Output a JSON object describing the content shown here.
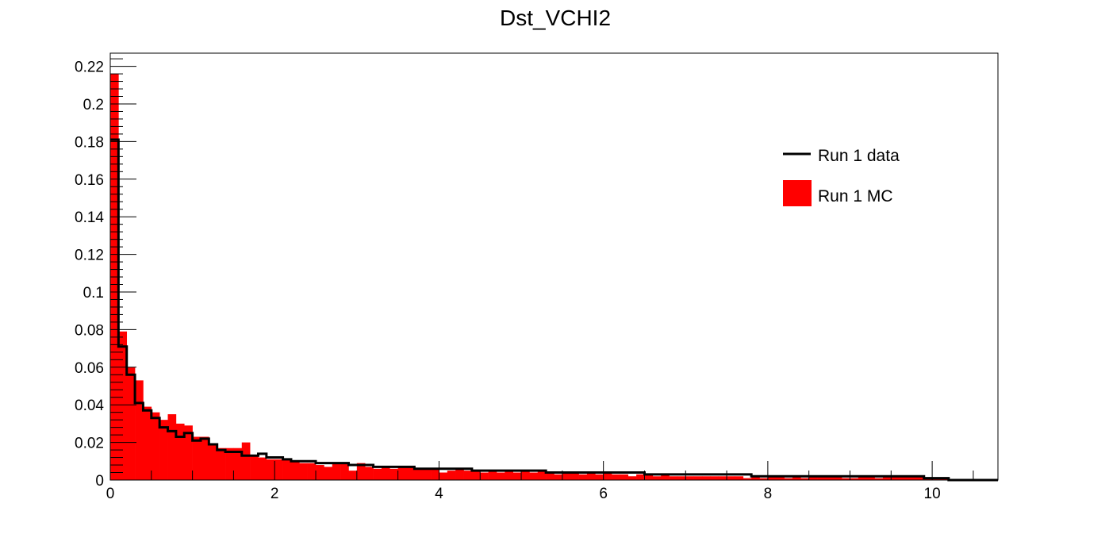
{
  "chart_data": {
    "type": "histogram",
    "title": "Dst_VCHI2",
    "xlabel": "",
    "ylabel": "",
    "xlim": [
      0,
      10.8
    ],
    "ylim": [
      0,
      0.227
    ],
    "bin_width": 0.1,
    "x_ticks": [
      0,
      2,
      4,
      6,
      8,
      10
    ],
    "x_tick_labels": [
      "0",
      "2",
      "4",
      "6",
      "8",
      "10"
    ],
    "y_ticks": [
      0,
      0.02,
      0.04,
      0.06,
      0.08,
      0.1,
      0.12,
      0.14,
      0.16,
      0.18,
      0.2,
      0.22
    ],
    "y_tick_labels": [
      "0",
      "0.02",
      "0.04",
      "0.06",
      "0.08",
      "0.1",
      "0.12",
      "0.14",
      "0.16",
      "0.18",
      "0.2",
      "0.22"
    ],
    "grid": false,
    "legend_position": "top-right",
    "series": [
      {
        "name": "Run 1 data",
        "style": "step-line",
        "color": "#000000",
        "values": [
          0.181,
          0.071,
          0.056,
          0.041,
          0.037,
          0.033,
          0.028,
          0.026,
          0.023,
          0.025,
          0.021,
          0.022,
          0.019,
          0.016,
          0.015,
          0.015,
          0.013,
          0.013,
          0.014,
          0.012,
          0.012,
          0.011,
          0.01,
          0.01,
          0.01,
          0.009,
          0.009,
          0.009,
          0.009,
          0.008,
          0.008,
          0.008,
          0.007,
          0.007,
          0.007,
          0.007,
          0.007,
          0.006,
          0.006,
          0.006,
          0.006,
          0.006,
          0.006,
          0.006,
          0.005,
          0.005,
          0.005,
          0.005,
          0.005,
          0.005,
          0.005,
          0.005,
          0.005,
          0.004,
          0.004,
          0.004,
          0.004,
          0.004,
          0.004,
          0.004,
          0.004,
          0.004,
          0.004,
          0.004,
          0.004,
          0.003,
          0.003,
          0.003,
          0.003,
          0.003,
          0.003,
          0.003,
          0.003,
          0.003,
          0.003,
          0.003,
          0.003,
          0.003,
          0.002,
          0.002,
          0.002,
          0.002,
          0.002,
          0.002,
          0.002,
          0.002,
          0.002,
          0.002,
          0.002,
          0.002,
          0.002,
          0.002,
          0.002,
          0.002,
          0.002,
          0.002,
          0.002,
          0.002,
          0.002,
          0.001,
          0.001,
          0.001,
          0.0,
          0.0,
          0.0,
          0.0,
          0.0,
          0.0
        ]
      },
      {
        "name": "Run 1 MC",
        "style": "filled-bars",
        "color": "#ff0000",
        "values": [
          0.216,
          0.079,
          0.06,
          0.053,
          0.039,
          0.036,
          0.032,
          0.035,
          0.03,
          0.029,
          0.023,
          0.023,
          0.019,
          0.017,
          0.017,
          0.017,
          0.02,
          0.013,
          0.012,
          0.011,
          0.011,
          0.011,
          0.01,
          0.009,
          0.009,
          0.008,
          0.007,
          0.009,
          0.009,
          0.005,
          0.009,
          0.007,
          0.006,
          0.007,
          0.006,
          0.007,
          0.007,
          0.006,
          0.006,
          0.006,
          0.004,
          0.005,
          0.006,
          0.005,
          0.005,
          0.004,
          0.005,
          0.004,
          0.005,
          0.004,
          0.005,
          0.004,
          0.005,
          0.004,
          0.003,
          0.004,
          0.004,
          0.003,
          0.004,
          0.003,
          0.004,
          0.003,
          0.003,
          0.002,
          0.003,
          0.003,
          0.002,
          0.003,
          0.002,
          0.002,
          0.002,
          0.002,
          0.002,
          0.002,
          0.002,
          0.002,
          0.002,
          0.001,
          0.002,
          0.001,
          0.002,
          0.002,
          0.001,
          0.002,
          0.001,
          0.002,
          0.002,
          0.002,
          0.002,
          0.001,
          0.001,
          0.002,
          0.002,
          0.001,
          0.002,
          0.002,
          0.002,
          0.002,
          0.002,
          0.001,
          0.001,
          0.001,
          0.0,
          0.0,
          0.0,
          0.0,
          0.0,
          0.0
        ]
      }
    ]
  }
}
